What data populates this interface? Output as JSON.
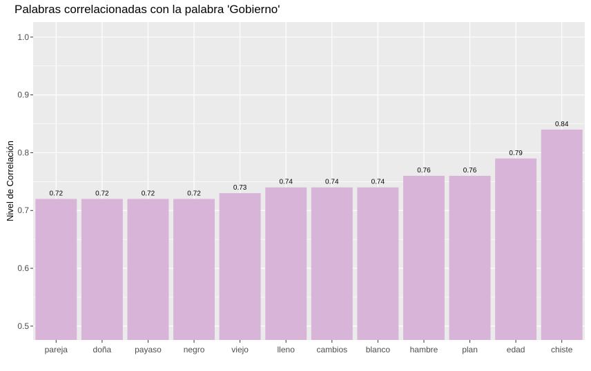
{
  "chart_data": {
    "type": "bar",
    "title": "Palabras correlacionadas con la palabra 'Gobierno'",
    "xlabel": "",
    "ylabel": "Nivel de Correlación",
    "categories": [
      "pareja",
      "doña",
      "payaso",
      "negro",
      "viejo",
      "lleno",
      "cambios",
      "blanco",
      "hambre",
      "plan",
      "edad",
      "chiste"
    ],
    "values": [
      0.72,
      0.72,
      0.72,
      0.72,
      0.73,
      0.74,
      0.74,
      0.74,
      0.76,
      0.76,
      0.79,
      0.84
    ],
    "data_labels": [
      "0.72",
      "0.72",
      "0.72",
      "0.72",
      "0.73",
      "0.74",
      "0.74",
      "0.74",
      "0.76",
      "0.76",
      "0.79",
      "0.84"
    ],
    "yticks": [
      0.5,
      0.6,
      0.7,
      0.8,
      0.9,
      1.0
    ],
    "ytick_labels": [
      "0.5",
      "0.6",
      "0.7",
      "0.8",
      "0.9",
      "1.0"
    ],
    "ylim": [
      0.476,
      1.026
    ],
    "grid": true,
    "legend": "none",
    "colors": {
      "bar": "#d8b4d8",
      "panel": "#ebebeb",
      "grid": "#ffffff"
    }
  }
}
